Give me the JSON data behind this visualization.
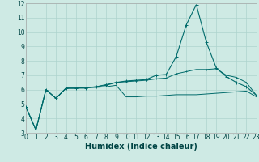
{
  "xlabel": "Humidex (Indice chaleur)",
  "background_color": "#ceeae4",
  "grid_color": "#aed4ce",
  "line_color": "#006b6b",
  "x": [
    0,
    1,
    2,
    3,
    4,
    5,
    6,
    7,
    8,
    9,
    10,
    11,
    12,
    13,
    14,
    15,
    16,
    17,
    18,
    19,
    20,
    21,
    22,
    23
  ],
  "series1": [
    4.8,
    3.2,
    6.0,
    5.4,
    6.1,
    6.1,
    6.15,
    6.15,
    6.2,
    6.3,
    5.5,
    5.5,
    5.55,
    5.55,
    5.6,
    5.65,
    5.65,
    5.65,
    5.7,
    5.75,
    5.8,
    5.85,
    5.9,
    5.5
  ],
  "series2": [
    4.8,
    3.2,
    6.0,
    5.4,
    6.1,
    6.1,
    6.1,
    6.2,
    6.3,
    6.5,
    6.6,
    6.65,
    6.7,
    7.0,
    7.05,
    8.3,
    10.5,
    11.9,
    9.3,
    7.5,
    6.9,
    6.5,
    6.2,
    5.6
  ],
  "series3": [
    4.8,
    3.2,
    6.0,
    5.4,
    6.1,
    6.1,
    6.15,
    6.2,
    6.35,
    6.5,
    6.55,
    6.6,
    6.65,
    6.75,
    6.8,
    7.1,
    7.25,
    7.4,
    7.4,
    7.45,
    7.0,
    6.85,
    6.5,
    5.6
  ],
  "ylim": [
    3,
    12
  ],
  "xlim": [
    0,
    23
  ],
  "yticks": [
    3,
    4,
    5,
    6,
    7,
    8,
    9,
    10,
    11,
    12
  ],
  "xticks": [
    0,
    1,
    2,
    3,
    4,
    5,
    6,
    7,
    8,
    9,
    10,
    11,
    12,
    13,
    14,
    15,
    16,
    17,
    18,
    19,
    20,
    21,
    22,
    23
  ],
  "xlabel_fontsize": 7,
  "tick_fontsize": 5.5
}
